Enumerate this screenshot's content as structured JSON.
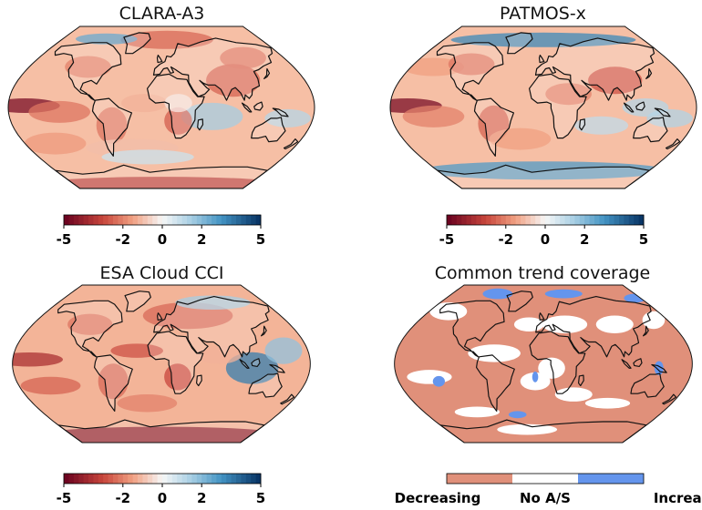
{
  "chart_data": [
    {
      "type": "heatmap",
      "title": "CLARA-A3",
      "projection": "Robinson",
      "colormap": "diverging red-white-blue",
      "colorbar": {
        "min": -5,
        "max": 5,
        "tick_values": [
          -5,
          -2,
          0,
          2,
          5
        ],
        "tick_labels": [
          "-5",
          "-2",
          "0",
          "2",
          "5"
        ]
      }
    },
    {
      "type": "heatmap",
      "title": "PATMOS-x",
      "projection": "Robinson",
      "colormap": "diverging red-white-blue",
      "colorbar": {
        "min": -5,
        "max": 5,
        "tick_values": [
          -5,
          -2,
          0,
          2,
          5
        ],
        "tick_labels": [
          "-5",
          "-2",
          "0",
          "2",
          "5"
        ]
      }
    },
    {
      "type": "heatmap",
      "title": "ESA Cloud CCI",
      "projection": "Robinson",
      "colormap": "diverging red-white-blue",
      "colorbar": {
        "min": -5,
        "max": 5,
        "tick_values": [
          -5,
          -2,
          0,
          2,
          5
        ],
        "tick_labels": [
          "-5",
          "-2",
          "0",
          "2",
          "5"
        ]
      }
    },
    {
      "type": "heatmap",
      "title": "Common trend coverage",
      "projection": "Robinson",
      "categories": [
        "Decreasing",
        "No A/S",
        "Increasing"
      ],
      "category_colors": [
        "#e0907a",
        "#ffffff",
        "#6495ed"
      ]
    }
  ],
  "colors": {
    "strong_negative": "#67001f",
    "negative": "#e58368",
    "light_negative": "#fbd3c0",
    "neutral": "#f7f7f7",
    "light_positive": "#cde3ef",
    "positive": "#4b95c4",
    "strong_positive": "#053061",
    "decreasing": "#e0907a",
    "no_change": "#ffffff",
    "increasing": "#6495ed",
    "coastline": "#111111"
  }
}
